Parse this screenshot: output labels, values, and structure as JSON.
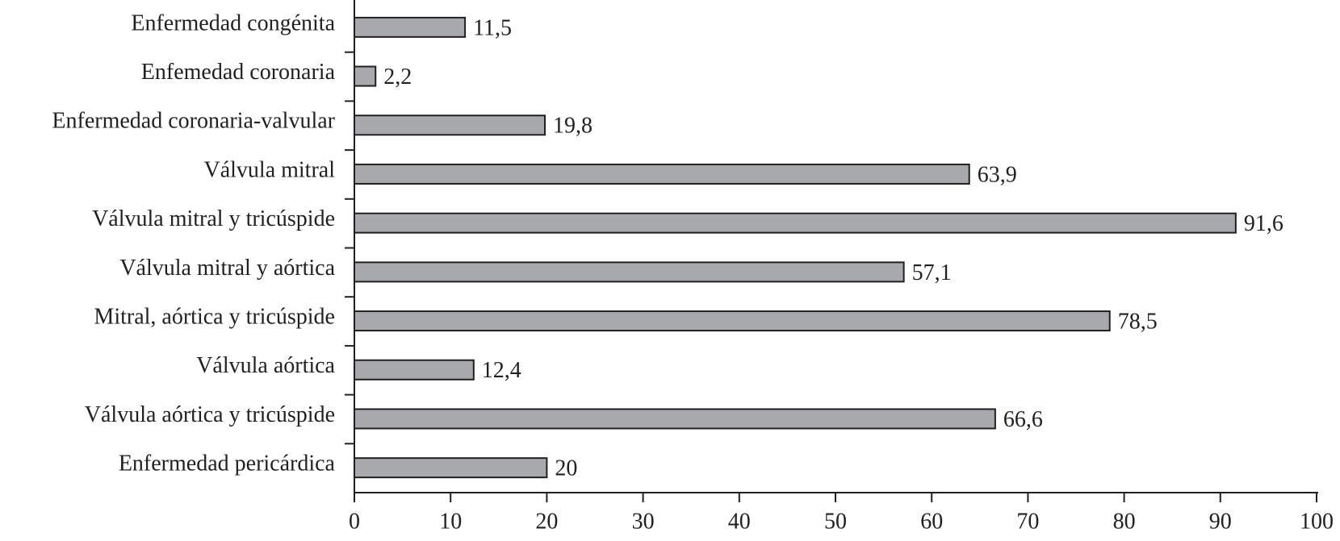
{
  "chart_data": {
    "type": "barh",
    "categories": [
      "Enfermedad congénita",
      "Enfemedad coronaria",
      "Enfermedad coronaria-valvular",
      "Válvula mitral",
      "Válvula mitral y tricúspide",
      "Válvula mitral y aórtica",
      "Mitral, aórtica y tricúspide",
      "Válvula aórtica",
      "Válvula aórtica y tricúspide",
      "Enfermedad pericárdica"
    ],
    "values": [
      11.5,
      2.2,
      19.8,
      63.9,
      91.6,
      57.1,
      78.5,
      12.4,
      66.6,
      20
    ],
    "value_labels": [
      "11,5",
      "2,2",
      "19,8",
      "63,9",
      "91,6",
      "57,1",
      "78,5",
      "12,4",
      "66,6",
      "20"
    ],
    "color": "#a7a9ac",
    "xlim": [
      0,
      100
    ],
    "xticks": [
      0,
      10,
      20,
      30,
      40,
      50,
      60,
      70,
      80,
      90,
      100
    ],
    "grid": false
  }
}
